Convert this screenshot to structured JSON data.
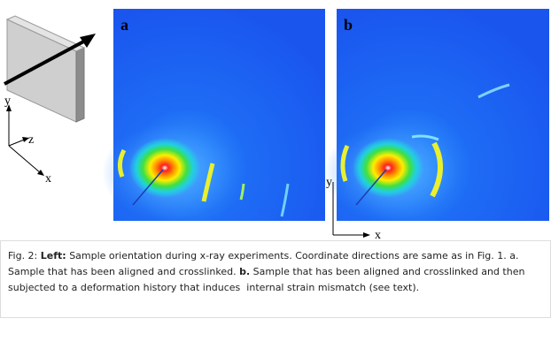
{
  "left_axes": {
    "y": "y",
    "z": "z",
    "x": "x"
  },
  "panels": [
    {
      "label": "a"
    },
    {
      "label": "b"
    }
  ],
  "panel_b_axes": {
    "y": "y",
    "x": "x"
  },
  "caption": {
    "figure": "Fig. 2:",
    "left_label": "Left:",
    "left_text": "Sample orientation during x-ray experiments. Coordinate directions are same as in Fig. 1.",
    "a_label": "a.",
    "a_text": "Sample that has been aligned and crosslinked.",
    "b_label": "b.",
    "b_text": "Sample that has been aligned and crosslinked and then subjected to a deformation history that induces  internal strain mismatch (see text)."
  }
}
